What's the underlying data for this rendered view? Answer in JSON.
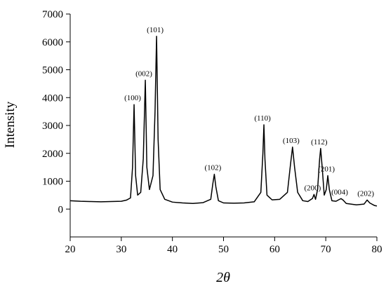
{
  "chart_data": {
    "type": "line",
    "xlabel": "2θ",
    "ylabel": "Intensity",
    "xlim": [
      20,
      80
    ],
    "ylim": [
      -1000,
      7000
    ],
    "xticks": [
      20,
      30,
      40,
      50,
      60,
      70,
      80
    ],
    "yticks": [
      0,
      1000,
      2000,
      3000,
      4000,
      5000,
      6000,
      7000
    ],
    "color": "#000000",
    "x": [
      20,
      22,
      24,
      26,
      28,
      30,
      31,
      31.8,
      32.2,
      32.5,
      32.8,
      33.2,
      33.8,
      34.3,
      34.7,
      35.0,
      35.5,
      36.2,
      36.6,
      36.9,
      37.2,
      37.6,
      38.5,
      40,
      42,
      44,
      46,
      47.5,
      47.9,
      48.2,
      48.5,
      49,
      50,
      52,
      54,
      56,
      57.3,
      57.7,
      57.9,
      58.1,
      58.5,
      59.5,
      61,
      62.5,
      63.1,
      63.5,
      63.9,
      64.5,
      65.5,
      66.5,
      67.4,
      67.7,
      68.0,
      68.4,
      68.8,
      69.0,
      69.3,
      69.7,
      70.1,
      70.4,
      70.7,
      71.2,
      72,
      72.6,
      73.0,
      73.4,
      74,
      76,
      77.5,
      78.1,
      78.6,
      79.5,
      80
    ],
    "values": [
      300,
      280,
      270,
      260,
      270,
      280,
      320,
      400,
      1500,
      3750,
      1200,
      500,
      600,
      1800,
      4625,
      1500,
      700,
      1200,
      3500,
      6200,
      2500,
      700,
      350,
      250,
      220,
      200,
      230,
      350,
      900,
      1250,
      800,
      300,
      220,
      210,
      220,
      260,
      600,
      2000,
      3025,
      1800,
      500,
      330,
      350,
      600,
      1600,
      2225,
      1500,
      600,
      300,
      270,
      380,
      525,
      350,
      700,
      1800,
      2175,
      1500,
      500,
      700,
      1200,
      700,
      300,
      280,
      340,
      375,
      320,
      200,
      150,
      180,
      325,
      220,
      130,
      110
    ],
    "annotations": [
      {
        "text": "(100)",
        "x": 32.5,
        "y": 3750
      },
      {
        "text": "(002)",
        "x": 34.7,
        "y": 4625
      },
      {
        "text": "(101)",
        "x": 36.9,
        "y": 6200
      },
      {
        "text": "(102)",
        "x": 48.2,
        "y": 1250
      },
      {
        "text": "(110)",
        "x": 57.9,
        "y": 3025
      },
      {
        "text": "(103)",
        "x": 63.5,
        "y": 2225
      },
      {
        "text": "(200)",
        "x": 67.7,
        "y": 525
      },
      {
        "text": "(112)",
        "x": 69.0,
        "y": 2175
      },
      {
        "text": "(201)",
        "x": 70.4,
        "y": 1200
      },
      {
        "text": "(004)",
        "x": 73.0,
        "y": 375
      },
      {
        "text": "(202)",
        "x": 78.1,
        "y": 325
      }
    ]
  }
}
